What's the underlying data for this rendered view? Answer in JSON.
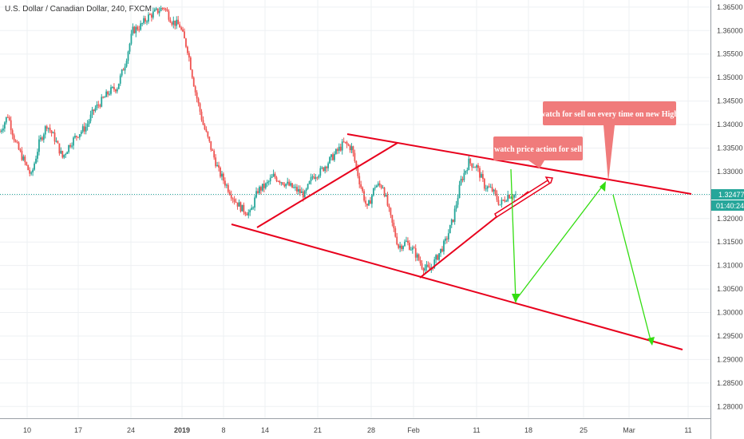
{
  "header": {
    "title": "U.S. Dollar / Canadian Dollar, 240, FXCM"
  },
  "price_axis": {
    "ticks": [
      "1.36500",
      "1.36000",
      "1.35500",
      "1.35000",
      "1.34500",
      "1.34000",
      "1.33500",
      "1.33000",
      "1.32500",
      "1.32000",
      "1.31500",
      "1.31000",
      "1.30500",
      "1.30000",
      "1.29500",
      "1.29000",
      "1.28500",
      "1.28000"
    ],
    "current_price": "1.32477",
    "countdown": "01:40:24"
  },
  "time_axis": {
    "ticks": [
      {
        "label": "10",
        "bold": false
      },
      {
        "label": "17",
        "bold": false
      },
      {
        "label": "24",
        "bold": false
      },
      {
        "label": "2019",
        "bold": true
      },
      {
        "label": "8",
        "bold": false
      },
      {
        "label": "14",
        "bold": false
      },
      {
        "label": "21",
        "bold": false
      },
      {
        "label": "28",
        "bold": false
      },
      {
        "label": "Feb",
        "bold": false
      },
      {
        "label": "11",
        "bold": false
      },
      {
        "label": "18",
        "bold": false
      },
      {
        "label": "25",
        "bold": false
      },
      {
        "label": "Mar",
        "bold": false
      },
      {
        "label": "11",
        "bold": false
      }
    ]
  },
  "annotations": {
    "note_sell_high": "watch for sell on every time on new High",
    "note_price_action": "watch price action for sell"
  },
  "colors": {
    "up": "#26a69a",
    "down": "#ef5350",
    "trend": "#e8001c",
    "projection": "#33dd11",
    "callout": "#f07b7b",
    "price_badge": "#26a69a"
  },
  "chart_data": {
    "type": "candlestick",
    "symbol": "U.S. Dollar / Canadian Dollar",
    "timeframe": "240",
    "ylim": [
      1.2775,
      1.3665
    ],
    "close_path": [
      [
        0,
        1.3385
      ],
      [
        5,
        1.342
      ],
      [
        10,
        1.336
      ],
      [
        15,
        1.3325
      ],
      [
        20,
        1.329
      ],
      [
        25,
        1.336
      ],
      [
        30,
        1.34
      ],
      [
        35,
        1.337
      ],
      [
        40,
        1.333
      ],
      [
        45,
        1.336
      ],
      [
        50,
        1.338
      ],
      [
        55,
        1.3395
      ],
      [
        60,
        1.343
      ],
      [
        65,
        1.345
      ],
      [
        70,
        1.347
      ],
      [
        75,
        1.348
      ],
      [
        80,
        1.353
      ],
      [
        85,
        1.36
      ],
      [
        90,
        1.361
      ],
      [
        95,
        1.363
      ],
      [
        100,
        1.364
      ],
      [
        105,
        1.365
      ],
      [
        110,
        1.362
      ],
      [
        115,
        1.361
      ],
      [
        120,
        1.356
      ],
      [
        125,
        1.347
      ],
      [
        130,
        1.34
      ],
      [
        135,
        1.335
      ],
      [
        140,
        1.33
      ],
      [
        145,
        1.327
      ],
      [
        150,
        1.324
      ],
      [
        155,
        1.322
      ],
      [
        160,
        1.321
      ],
      [
        165,
        1.326
      ],
      [
        170,
        1.327
      ],
      [
        175,
        1.329
      ],
      [
        180,
        1.328
      ],
      [
        185,
        1.327
      ],
      [
        190,
        1.326
      ],
      [
        195,
        1.325
      ],
      [
        200,
        1.329
      ],
      [
        205,
        1.33
      ],
      [
        210,
        1.332
      ],
      [
        215,
        1.334
      ],
      [
        220,
        1.336
      ],
      [
        225,
        1.335
      ],
      [
        230,
        1.328
      ],
      [
        235,
        1.322
      ],
      [
        240,
        1.327
      ],
      [
        245,
        1.327
      ],
      [
        250,
        1.32
      ],
      [
        255,
        1.314
      ],
      [
        260,
        1.315
      ],
      [
        265,
        1.313
      ],
      [
        270,
        1.31
      ],
      [
        275,
        1.309
      ],
      [
        280,
        1.312
      ],
      [
        285,
        1.315
      ],
      [
        290,
        1.32
      ],
      [
        295,
        1.328
      ],
      [
        300,
        1.332
      ],
      [
        305,
        1.331
      ],
      [
        310,
        1.327
      ],
      [
        315,
        1.326
      ],
      [
        320,
        1.323
      ],
      [
        325,
        1.325
      ],
      [
        330,
        1.325
      ]
    ]
  }
}
